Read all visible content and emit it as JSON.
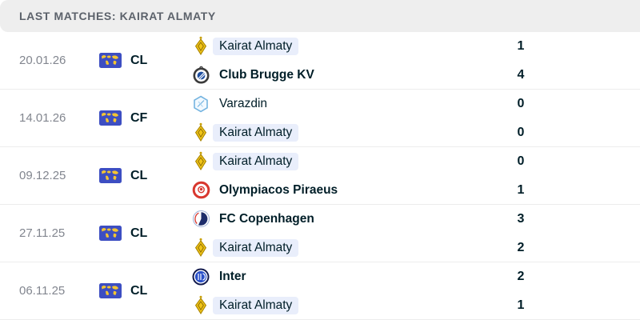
{
  "header": {
    "title": "LAST MATCHES: KAIRAT ALMATY"
  },
  "competition_icon": "world-flag-icon",
  "colors": {
    "header_bg": "#eeeeee",
    "header_text": "#5c626b",
    "text_dark": "#001e28",
    "date_gray": "#82868f",
    "highlight_pill": "#e9eefb",
    "world_flag_blue": "#3d4ec2",
    "world_flag_yellow": "#f5c531",
    "divider": "#ececec"
  },
  "matches": [
    {
      "date": "20.01.26",
      "competition": "CL",
      "teams": [
        {
          "name": "Kairat Almaty",
          "score": "1",
          "winner": false,
          "highlight": true,
          "badge": "kairat-almaty"
        },
        {
          "name": "Club Brugge KV",
          "score": "4",
          "winner": true,
          "highlight": false,
          "badge": "club-brugge"
        }
      ]
    },
    {
      "date": "14.01.26",
      "competition": "CF",
      "teams": [
        {
          "name": "Varazdin",
          "score": "0",
          "winner": false,
          "highlight": false,
          "badge": "varazdin"
        },
        {
          "name": "Kairat Almaty",
          "score": "0",
          "winner": false,
          "highlight": true,
          "badge": "kairat-almaty"
        }
      ]
    },
    {
      "date": "09.12.25",
      "competition": "CL",
      "teams": [
        {
          "name": "Kairat Almaty",
          "score": "0",
          "winner": false,
          "highlight": true,
          "badge": "kairat-almaty"
        },
        {
          "name": "Olympiacos Piraeus",
          "score": "1",
          "winner": true,
          "highlight": false,
          "badge": "olympiacos"
        }
      ]
    },
    {
      "date": "27.11.25",
      "competition": "CL",
      "teams": [
        {
          "name": "FC Copenhagen",
          "score": "3",
          "winner": true,
          "highlight": false,
          "badge": "fc-copenhagen"
        },
        {
          "name": "Kairat Almaty",
          "score": "2",
          "winner": false,
          "highlight": true,
          "badge": "kairat-almaty"
        }
      ]
    },
    {
      "date": "06.11.25",
      "competition": "CL",
      "teams": [
        {
          "name": "Inter",
          "score": "2",
          "winner": true,
          "highlight": false,
          "badge": "inter"
        },
        {
          "name": "Kairat Almaty",
          "score": "1",
          "winner": false,
          "highlight": true,
          "badge": "kairat-almaty"
        }
      ]
    }
  ]
}
